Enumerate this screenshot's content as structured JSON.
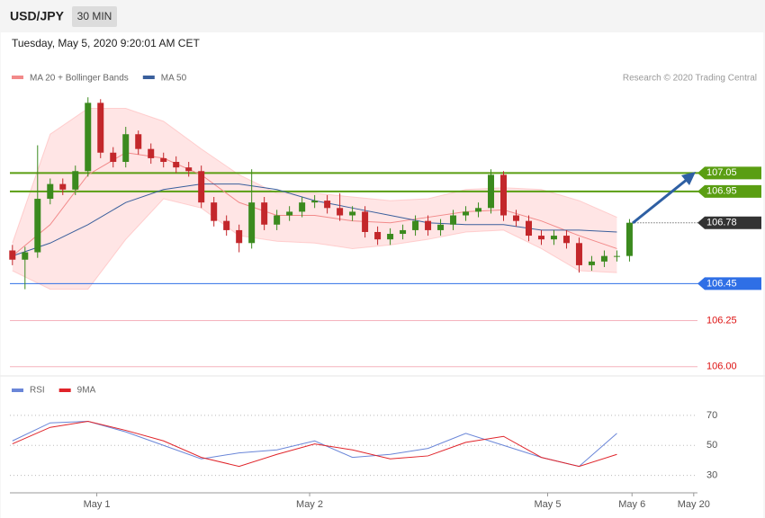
{
  "header": {
    "symbol": "USD/JPY",
    "timeframe": "30 MIN",
    "datetime": "Tuesday, May 5, 2020 9:20:01 AM CET"
  },
  "chart_data": [
    {
      "type": "candlestick",
      "source": "Research © 2020 Trading Central",
      "up_color": "#3b8a1e",
      "down_color": "#c3272b",
      "xlim": [
        -0.2,
        54.4
      ],
      "ylim": [
        105.95,
        107.5
      ],
      "open": [
        106.63,
        106.58,
        106.62,
        106.91,
        106.99,
        106.96,
        107.06,
        107.43,
        107.16,
        107.11,
        107.26,
        107.18,
        107.13,
        107.11,
        107.08,
        107.06,
        106.89,
        106.79,
        106.74,
        106.67,
        106.89,
        106.77,
        106.82,
        106.84,
        106.89,
        106.9,
        106.86,
        106.82,
        106.84,
        106.73,
        106.69,
        106.72,
        106.74,
        106.79,
        106.74,
        106.77,
        106.82,
        106.84,
        106.86,
        107.04,
        106.82,
        106.79,
        106.71,
        106.69,
        106.71,
        106.67,
        106.55,
        106.57,
        106.6,
        106.6
      ],
      "high": [
        106.66,
        106.65,
        107.2,
        107.02,
        107.02,
        107.09,
        107.46,
        107.45,
        107.19,
        107.3,
        107.28,
        107.21,
        107.16,
        107.14,
        107.11,
        107.09,
        106.92,
        106.82,
        106.77,
        107.07,
        106.92,
        106.85,
        106.87,
        106.92,
        106.93,
        106.93,
        106.94,
        106.87,
        106.87,
        106.76,
        106.75,
        106.77,
        106.82,
        106.82,
        106.8,
        106.85,
        106.87,
        106.89,
        107.07,
        107.06,
        106.85,
        106.82,
        106.74,
        106.74,
        106.74,
        106.7,
        106.6,
        106.63,
        106.63,
        106.8
      ],
      "low": [
        106.55,
        106.42,
        106.59,
        106.88,
        106.93,
        106.93,
        107.03,
        107.13,
        107.08,
        107.08,
        107.15,
        107.1,
        107.08,
        107.05,
        107.03,
        106.86,
        106.76,
        106.71,
        106.62,
        106.64,
        106.74,
        106.74,
        106.79,
        106.81,
        106.86,
        106.83,
        106.79,
        106.79,
        106.7,
        106.66,
        106.66,
        106.69,
        106.71,
        106.71,
        106.71,
        106.74,
        106.79,
        106.81,
        106.83,
        106.79,
        106.76,
        106.68,
        106.66,
        106.66,
        106.64,
        106.51,
        106.52,
        106.54,
        106.57,
        106.57
      ],
      "close": [
        106.58,
        106.62,
        106.91,
        106.99,
        106.96,
        107.06,
        107.43,
        107.16,
        107.11,
        107.26,
        107.18,
        107.13,
        107.11,
        107.08,
        107.06,
        106.89,
        106.79,
        106.74,
        106.67,
        106.89,
        106.77,
        106.82,
        106.84,
        106.89,
        106.9,
        106.86,
        106.82,
        106.84,
        106.73,
        106.69,
        106.72,
        106.74,
        106.79,
        106.74,
        106.77,
        106.82,
        106.84,
        106.86,
        107.04,
        106.82,
        106.79,
        106.71,
        106.69,
        106.71,
        106.67,
        106.55,
        106.57,
        106.6,
        106.6,
        106.78
      ],
      "line_x": [
        0,
        3,
        6,
        9,
        12,
        15,
        18,
        21,
        24,
        27,
        30,
        33,
        36,
        39,
        42,
        45,
        48
      ],
      "series": [
        {
          "name": "MA 20 + Bollinger Bands",
          "color": "#f28a8a",
          "values": [
            106.6,
            106.77,
            107.04,
            107.16,
            107.13,
            107.04,
            106.89,
            106.82,
            106.82,
            106.79,
            106.78,
            106.81,
            106.84,
            106.85,
            106.79,
            106.71,
            106.64
          ],
          "upper": [
            106.67,
            107.26,
            107.4,
            107.4,
            107.33,
            107.18,
            107.04,
            106.94,
            106.94,
            106.92,
            106.9,
            106.91,
            106.96,
            106.97,
            106.96,
            106.9,
            106.81
          ],
          "lower": [
            106.52,
            106.42,
            106.42,
            106.69,
            106.91,
            106.86,
            106.71,
            106.68,
            106.67,
            106.64,
            106.66,
            106.69,
            106.73,
            106.74,
            106.64,
            106.52,
            106.51
          ]
        },
        {
          "name": "MA 50",
          "color": "#3a5f9c",
          "values": [
            106.6,
            106.67,
            106.77,
            106.89,
            106.96,
            106.99,
            106.99,
            106.96,
            106.9,
            106.86,
            106.82,
            106.78,
            106.77,
            106.77,
            106.74,
            106.74,
            106.73
          ]
        }
      ],
      "levels": [
        107.05,
        106.95,
        106.78,
        106.45,
        106.25,
        {
          "value": 106,
          "label": "106.00"
        }
      ],
      "level_colors": [
        "#5a9e12",
        "#5a9e12",
        "#333333",
        "#2f6fe6",
        "#f5b3bd",
        "#f5b3bd"
      ],
      "level_styles": [
        "box",
        "box",
        "dotted-box",
        "box",
        "text",
        "text"
      ]
    },
    {
      "type": "line",
      "xlim": [
        -0.2,
        54.4
      ],
      "ylim": [
        18.4,
        82.8
      ],
      "x": [
        0,
        3,
        6,
        9,
        12,
        15,
        18,
        21,
        24,
        27,
        30,
        33,
        36,
        39,
        42,
        45,
        48
      ],
      "series": [
        {
          "name": "RSI",
          "color": "#6a86d8",
          "values": [
            53,
            65,
            66,
            59,
            50,
            41,
            45,
            47,
            53,
            42,
            44,
            48,
            58,
            50,
            42,
            36,
            58
          ]
        },
        {
          "name": "9MA",
          "color": "#e0242a",
          "values": [
            51,
            62,
            66,
            60,
            53,
            42,
            36,
            44,
            51,
            47,
            41,
            43,
            52,
            56,
            42,
            36,
            44
          ]
        }
      ],
      "yticks": [
        70,
        50,
        30
      ],
      "xticks": [
        {
          "value": 6.7,
          "label": "May 1"
        },
        {
          "value": 23.6,
          "label": "May 2"
        },
        {
          "value": 42.5,
          "label": "May 5"
        },
        {
          "value": 49.2,
          "label": "May 6"
        },
        {
          "value": 54.1,
          "label": "May 20"
        }
      ]
    }
  ]
}
